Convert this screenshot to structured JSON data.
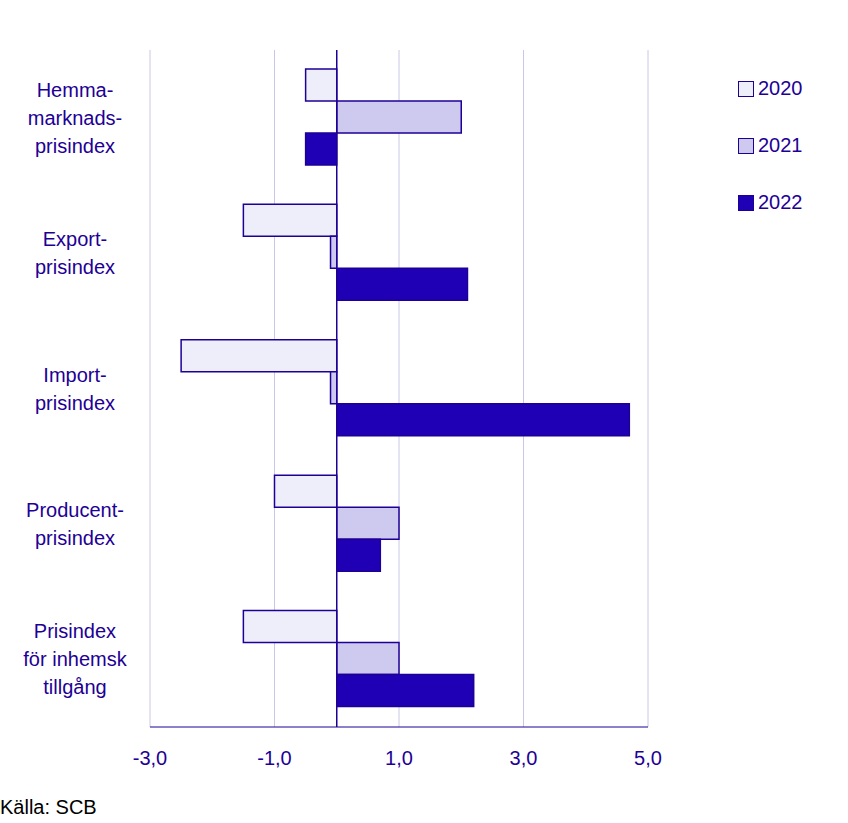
{
  "chart_data": {
    "type": "bar",
    "orientation": "horizontal",
    "categories": [
      "Hemma-\nmarknads-\nprisindex",
      "Export-\nprisindex",
      "Import-\nprisindex",
      "Producent-\nprisindex",
      "Prisindex\nför inhemsk\ntillgång"
    ],
    "series": [
      {
        "name": "2020",
        "color": "#eeeefb",
        "values": [
          -0.5,
          -1.5,
          -2.5,
          -1.0,
          -1.5
        ]
      },
      {
        "name": "2021",
        "color": "#cdc9ef",
        "values": [
          2.0,
          -0.1,
          -0.1,
          1.0,
          1.0
        ]
      },
      {
        "name": "2022",
        "color": "#1f00b5",
        "values": [
          -0.5,
          2.1,
          4.7,
          0.7,
          2.2
        ]
      }
    ],
    "xlim": [
      -3,
      5
    ],
    "xticks": [
      {
        "value": -3,
        "label": "-3,0"
      },
      {
        "value": -1,
        "label": "-1,0"
      },
      {
        "value": 1,
        "label": "1,0"
      },
      {
        "value": 3,
        "label": "3,0"
      },
      {
        "value": 5,
        "label": "5,0"
      }
    ],
    "grid": true,
    "legend": "top-right",
    "source": "Källa: SCB"
  }
}
